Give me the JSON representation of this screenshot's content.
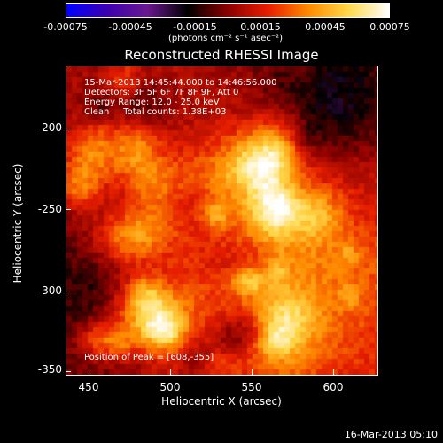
{
  "colorbar": {
    "ticks": [
      "-0.00075",
      "-0.00045",
      "-0.00015",
      "0.00015",
      "0.00045",
      "0.00075"
    ],
    "units_label": "(photons cm⁻² s⁻¹ asec⁻²)",
    "colors": [
      "#0000ff",
      "#3b00b0",
      "#6a1890",
      "#000000",
      "#8a0000",
      "#e61e00",
      "#ff8a00",
      "#ffd84a",
      "#ffffff"
    ]
  },
  "plot": {
    "title": "Reconstructed RHESSI Image",
    "annotations": {
      "time_range": "15-Mar-2013 14:45:44.000 to 14:46:56.000",
      "detectors": "Detectors: 3F 5F 6F 7F 8F 9F, Att 0",
      "energy": "Energy Range: 12.0 - 25.0 keV",
      "clean": "Clean     Total counts: 1.38E+03",
      "peak": "Position of Peak = [608,-355]"
    },
    "xlabel": "Heliocentric X (arcsec)",
    "ylabel": "Heliocentric Y (arcsec)",
    "xticks": [
      "450",
      "500",
      "550",
      "600"
    ],
    "yticks": [
      "-200",
      "-250",
      "-300",
      "-350"
    ],
    "xrange": [
      436,
      627
    ],
    "yrange": [
      -356,
      -166
    ]
  },
  "footer": {
    "timestamp": "16-Mar-2013 05:10"
  }
}
